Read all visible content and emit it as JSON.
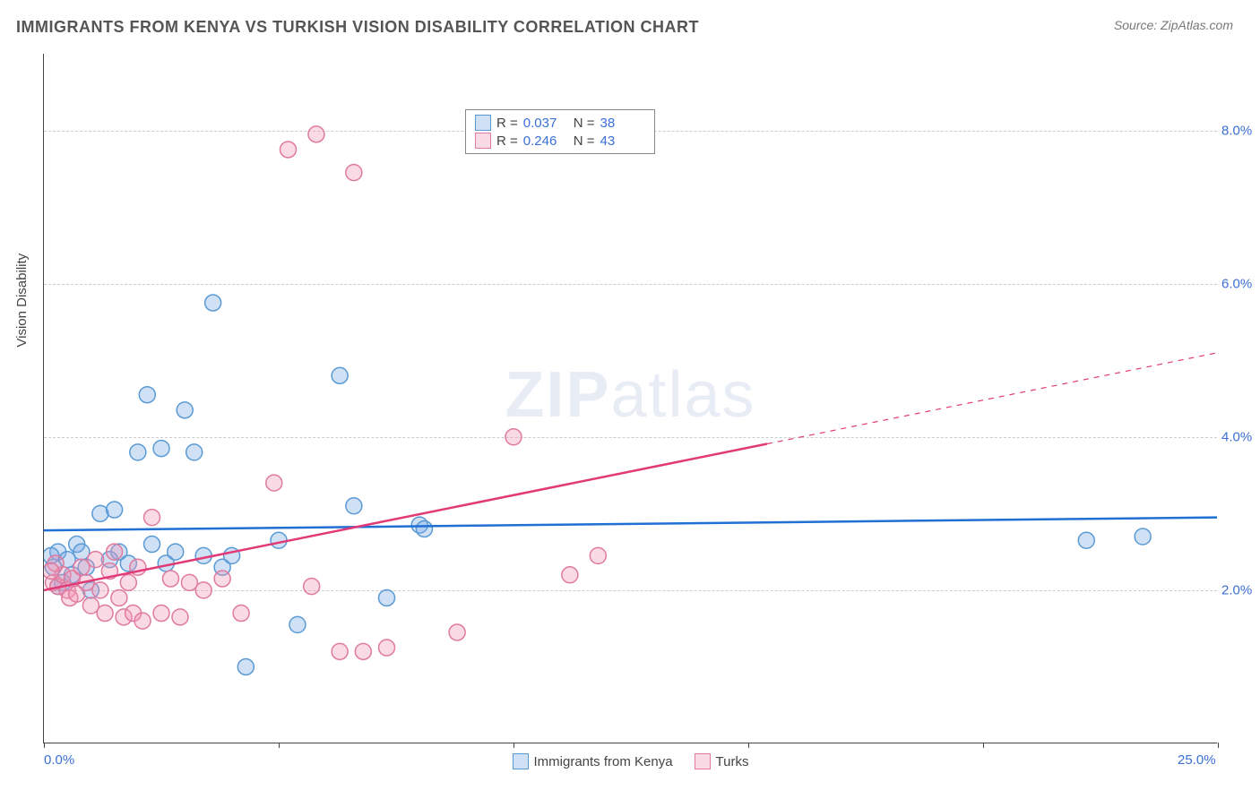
{
  "title": "IMMIGRANTS FROM KENYA VS TURKISH VISION DISABILITY CORRELATION CHART",
  "source_label": "Source:",
  "source_value": "ZipAtlas.com",
  "ylabel": "Vision Disability",
  "watermark_bold": "ZIP",
  "watermark_light": "atlas",
  "chart": {
    "type": "scatter",
    "xlim": [
      0,
      25
    ],
    "ylim": [
      0,
      9
    ],
    "x_ticks_minor": [
      0,
      5,
      10,
      15,
      20,
      25
    ],
    "x_tick_labels": {
      "0": "0.0%",
      "25": "25.0%"
    },
    "y_ticks": [
      2,
      4,
      6,
      8
    ],
    "y_tick_labels": {
      "2": "2.0%",
      "4": "4.0%",
      "6": "6.0%",
      "8": "8.0%"
    },
    "background_color": "#ffffff",
    "grid_color": "#cccccc",
    "axis_color": "#444444",
    "tick_label_color": "#3b6fd4",
    "series": [
      {
        "name": "Immigrants from Kenya",
        "short": "kenya",
        "fill": "rgba(120,170,230,0.35)",
        "stroke": "#5a9ad4",
        "line_color": "#1f6fd4",
        "line_width": 2.5,
        "marker_radius": 9,
        "R": "0.037",
        "N": "38",
        "trend": {
          "x1": 0,
          "y1": 2.78,
          "x2": 25,
          "y2": 2.95,
          "solid_until_x": 25
        },
        "points": [
          [
            0.2,
            2.3
          ],
          [
            0.3,
            2.5
          ],
          [
            0.4,
            2.1
          ],
          [
            0.5,
            2.4
          ],
          [
            0.6,
            2.2
          ],
          [
            0.7,
            2.6
          ],
          [
            0.8,
            2.5
          ],
          [
            0.9,
            2.3
          ],
          [
            1.0,
            2.0
          ],
          [
            1.2,
            3.0
          ],
          [
            1.4,
            2.4
          ],
          [
            1.5,
            3.05
          ],
          [
            1.6,
            2.5
          ],
          [
            1.8,
            2.35
          ],
          [
            2.0,
            3.8
          ],
          [
            2.2,
            4.55
          ],
          [
            2.3,
            2.6
          ],
          [
            2.5,
            3.85
          ],
          [
            2.6,
            2.35
          ],
          [
            2.8,
            2.5
          ],
          [
            3.0,
            4.35
          ],
          [
            3.2,
            3.8
          ],
          [
            3.4,
            2.45
          ],
          [
            3.6,
            5.75
          ],
          [
            3.8,
            2.3
          ],
          [
            4.0,
            2.45
          ],
          [
            4.3,
            1.0
          ],
          [
            5.0,
            2.65
          ],
          [
            5.4,
            1.55
          ],
          [
            6.3,
            4.8
          ],
          [
            6.6,
            3.1
          ],
          [
            7.3,
            1.9
          ],
          [
            8.0,
            2.85
          ],
          [
            8.1,
            2.8
          ],
          [
            22.2,
            2.65
          ],
          [
            23.4,
            2.7
          ],
          [
            0.3,
            2.05
          ],
          [
            0.15,
            2.45
          ]
        ]
      },
      {
        "name": "Turks",
        "short": "turks",
        "fill": "rgba(240,150,180,0.35)",
        "stroke": "#e07aa0",
        "line_color": "#e23a77",
        "line_width": 2.5,
        "marker_radius": 9,
        "R": "0.246",
        "N": "43",
        "trend": {
          "x1": 0,
          "y1": 2.0,
          "x2": 25,
          "y2": 5.1,
          "solid_until_x": 15.4
        },
        "points": [
          [
            0.2,
            2.1
          ],
          [
            0.3,
            2.05
          ],
          [
            0.4,
            2.2
          ],
          [
            0.5,
            2.0
          ],
          [
            0.55,
            1.9
          ],
          [
            0.6,
            2.15
          ],
          [
            0.7,
            1.95
          ],
          [
            0.8,
            2.3
          ],
          [
            0.9,
            2.1
          ],
          [
            1.0,
            1.8
          ],
          [
            1.1,
            2.4
          ],
          [
            1.2,
            2.0
          ],
          [
            1.3,
            1.7
          ],
          [
            1.4,
            2.25
          ],
          [
            1.5,
            2.5
          ],
          [
            1.6,
            1.9
          ],
          [
            1.7,
            1.65
          ],
          [
            1.8,
            2.1
          ],
          [
            1.9,
            1.7
          ],
          [
            2.0,
            2.3
          ],
          [
            2.1,
            1.6
          ],
          [
            2.3,
            2.95
          ],
          [
            2.5,
            1.7
          ],
          [
            2.7,
            2.15
          ],
          [
            2.9,
            1.65
          ],
          [
            3.1,
            2.1
          ],
          [
            3.4,
            2.0
          ],
          [
            3.8,
            2.15
          ],
          [
            4.2,
            1.7
          ],
          [
            4.9,
            3.4
          ],
          [
            5.2,
            7.75
          ],
          [
            5.7,
            2.05
          ],
          [
            5.8,
            7.95
          ],
          [
            6.3,
            1.2
          ],
          [
            6.6,
            7.45
          ],
          [
            6.8,
            1.2
          ],
          [
            7.3,
            1.25
          ],
          [
            8.8,
            1.45
          ],
          [
            10.0,
            4.0
          ],
          [
            11.2,
            2.2
          ],
          [
            11.8,
            2.45
          ],
          [
            0.25,
            2.35
          ],
          [
            0.15,
            2.25
          ]
        ]
      }
    ]
  },
  "legend_bottom": [
    {
      "series": 0
    },
    {
      "series": 1
    }
  ]
}
